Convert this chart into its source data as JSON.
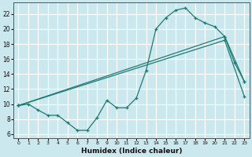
{
  "bg_color": "#cce8ef",
  "grid_color": "#ffffff",
  "line_color": "#1e7a72",
  "xlabel": "Humidex (Indice chaleur)",
  "xlim": [
    -0.5,
    23.5
  ],
  "ylim": [
    5.5,
    23.5
  ],
  "yticks": [
    6,
    8,
    10,
    12,
    14,
    16,
    18,
    20,
    22
  ],
  "xticks": [
    0,
    1,
    2,
    3,
    4,
    5,
    6,
    7,
    8,
    9,
    10,
    11,
    12,
    13,
    14,
    15,
    16,
    17,
    18,
    19,
    20,
    21,
    22,
    23
  ],
  "curve1_x": [
    0,
    1,
    2,
    3,
    4,
    5,
    6,
    7,
    8,
    9,
    10,
    11,
    12,
    13,
    14,
    15,
    16,
    17,
    18,
    19,
    20,
    21,
    22,
    23
  ],
  "curve1_y": [
    9.8,
    10.0,
    9.2,
    8.5,
    8.5,
    7.5,
    6.5,
    6.5,
    8.2,
    10.5,
    9.5,
    9.5,
    10.8,
    14.5,
    20.0,
    21.5,
    22.5,
    22.8,
    21.5,
    20.8,
    20.3,
    19.0,
    15.5,
    13.0
  ],
  "curve2_x": [
    0,
    21,
    23
  ],
  "curve2_y": [
    9.8,
    19.0,
    13.0
  ],
  "curve3_x": [
    0,
    21,
    23
  ],
  "curve3_y": [
    9.8,
    18.5,
    11.0
  ]
}
